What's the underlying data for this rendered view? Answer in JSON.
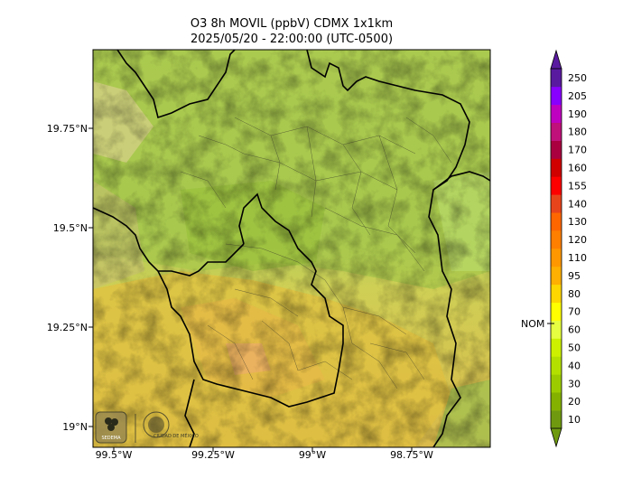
{
  "title": {
    "line1": "O3 8h MOVIL (ppbV) CDMX 1x1km",
    "line2": "2025/05/20 - 22:00:00 (UTC-0500)"
  },
  "axes": {
    "lat_ticks": [
      "19.75°N",
      "19.5°N",
      "19.25°N",
      "19°N"
    ],
    "lon_ticks": [
      "99.5°W",
      "99.25°W",
      "99°W",
      "98.75°W"
    ]
  },
  "colorbar": {
    "marker_label": "NOM",
    "levels": [
      "10",
      "20",
      "30",
      "40",
      "50",
      "60",
      "70",
      "80",
      "95",
      "110",
      "120",
      "130",
      "140",
      "155",
      "160",
      "170",
      "180",
      "190",
      "205",
      "250"
    ],
    "colors": [
      "#6f9a10",
      "#84b000",
      "#9ccc00",
      "#b4e000",
      "#ccf000",
      "#e6ff40",
      "#ffff00",
      "#ffd700",
      "#ffb000",
      "#ff9800",
      "#ff7f00",
      "#ff6600",
      "#e8441c",
      "#ff0000",
      "#d00000",
      "#aa0040",
      "#c0107a",
      "#c000c0",
      "#8800ff",
      "#5a1aa0"
    ]
  },
  "logos": {
    "left": "SEDEMA",
    "right": "CIUDAD DE MÉXICO"
  }
}
